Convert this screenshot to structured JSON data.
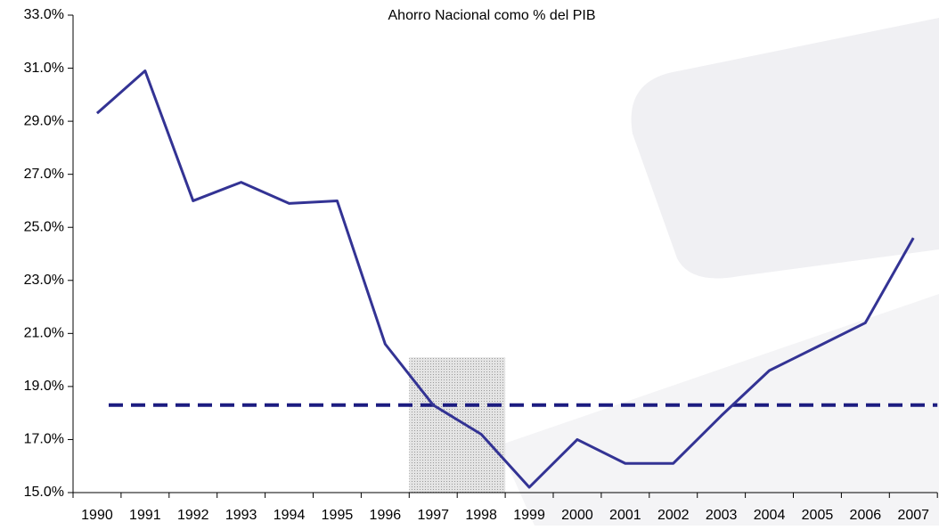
{
  "chart_data": {
    "type": "line",
    "title": "Ahorro Nacional como % del PIB",
    "categories": [
      "1990",
      "1991",
      "1992",
      "1993",
      "1994",
      "1995",
      "1996",
      "1997",
      "1998",
      "1999",
      "2000",
      "2001",
      "2002",
      "2003",
      "2004",
      "2005",
      "2006",
      "2007"
    ],
    "series": [
      {
        "name": "Ahorro Nacional",
        "color": "#333394",
        "values": [
          29.3,
          30.9,
          26.0,
          26.7,
          25.9,
          26.0,
          20.6,
          18.3,
          17.2,
          15.2,
          17.0,
          16.1,
          16.1,
          17.9,
          19.6,
          20.5,
          21.4,
          24.6
        ]
      }
    ],
    "reference_line": {
      "value": 18.3,
      "color": "#1c1c80"
    },
    "shaded_region": {
      "from": "1997",
      "to": "1998",
      "top": 20.1
    },
    "ylim": [
      15,
      33
    ],
    "yticks": [
      {
        "value": 15,
        "label": "15.0%"
      },
      {
        "value": 17,
        "label": "17.0%"
      },
      {
        "value": 19,
        "label": "19.0%"
      },
      {
        "value": 21,
        "label": "21.0%"
      },
      {
        "value": 23,
        "label": "23.0%"
      },
      {
        "value": 25,
        "label": "25.0%"
      },
      {
        "value": 27,
        "label": "27.0%"
      },
      {
        "value": 29,
        "label": "29.0%"
      },
      {
        "value": 31,
        "label": "31.0%"
      },
      {
        "value": 33,
        "label": "33.0%"
      }
    ],
    "grid": false
  }
}
